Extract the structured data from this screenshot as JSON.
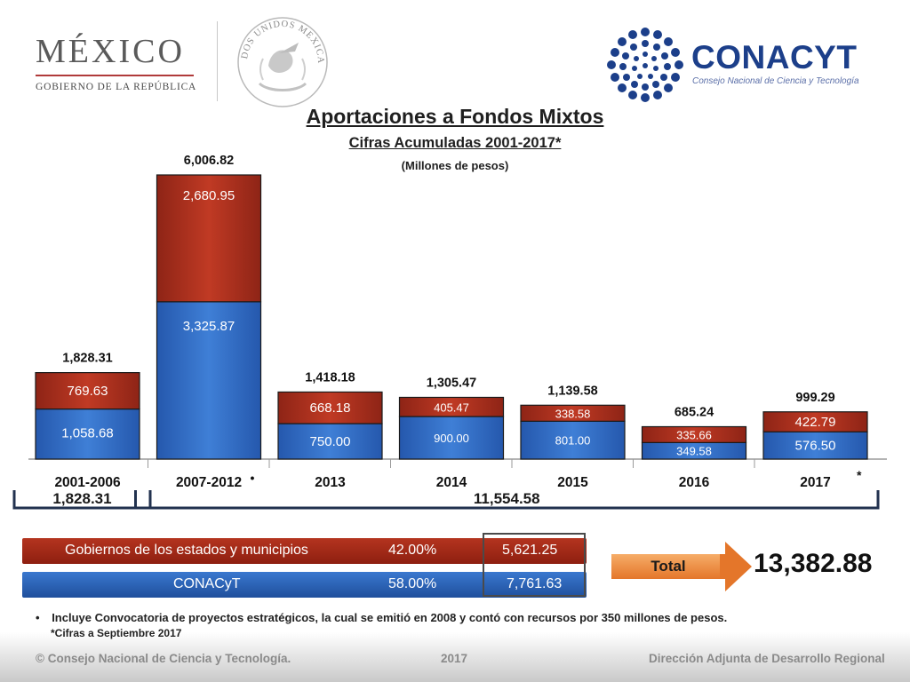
{
  "header": {
    "mexico_title": "MÉXICO",
    "mexico_subtitle": "GOBIERNO DE LA REPÚBLICA",
    "seal_text": "ESTADOS UNIDOS MEXICANOS",
    "conacyt_name": "CONACYT",
    "conacyt_subtitle": "Consejo Nacional de Ciencia y Tecnología"
  },
  "colors": {
    "red_series": "#a8301c",
    "blue_series": "#2f6cc4",
    "conacyt_blue": "#1c3f8a"
  },
  "chart_data": {
    "type": "bar",
    "stacked": true,
    "title": "Aportaciones a Fondos Mixtos",
    "subtitle": "Cifras Acumuladas 2001-2017*",
    "units": "(Millones de pesos)",
    "categories": [
      "2001-2006",
      "2007-2012",
      "2013",
      "2014",
      "2015",
      "2016",
      "2017"
    ],
    "category_suffixes": [
      "",
      "•",
      "",
      "",
      "",
      "",
      "*"
    ],
    "series": [
      {
        "key": "conacyt",
        "values": [
          1058.68,
          3325.87,
          750.0,
          900.0,
          801.0,
          349.58,
          576.5
        ],
        "labels": [
          "1,058.68",
          "3,325.87",
          "750.00",
          "900.00",
          "801.00",
          "349.58",
          "576.50"
        ]
      },
      {
        "key": "estados",
        "values": [
          769.63,
          2680.95,
          668.18,
          405.47,
          338.58,
          335.66,
          422.79
        ],
        "labels": [
          "769.63",
          "2,680.95",
          "668.18",
          "405.47",
          "338.58",
          "335.66",
          "422.79"
        ]
      }
    ],
    "totals": [
      1828.31,
      6006.82,
      1418.18,
      1305.47,
      1139.58,
      685.24,
      999.29
    ],
    "total_labels": [
      "1,828.31",
      "6,006.82",
      "1,418.18",
      "1,305.47",
      "1,139.58",
      "685.24",
      "999.29"
    ],
    "ylim": [
      0,
      6006.82
    ],
    "grid": false,
    "groups": [
      {
        "label": "1,828.31",
        "from": 0,
        "to": 0
      },
      {
        "label": "11,554.58",
        "from": 1,
        "to": 6
      }
    ]
  },
  "legend": {
    "estados_label": "Gobiernos de los estados y municipios",
    "estados_pct": "42.00%",
    "estados_amount": "5,621.25",
    "conacyt_label": "CONACyT",
    "conacyt_pct": "58.00%",
    "conacyt_amount": "7,761.63"
  },
  "total": {
    "label": "Total",
    "value": "13,382.88"
  },
  "notes": {
    "bullet": "•",
    "line1": "Incluye Convocatoria de proyectos estratégicos, la cual se emitió en 2008  y contó con recursos por 350 millones de pesos.",
    "line2": "*Cifras a Septiembre 2017"
  },
  "footer": {
    "left": "© Consejo Nacional de Ciencia y Tecnología.",
    "center": "2017",
    "right": "Dirección Adjunta de Desarrollo Regional"
  }
}
